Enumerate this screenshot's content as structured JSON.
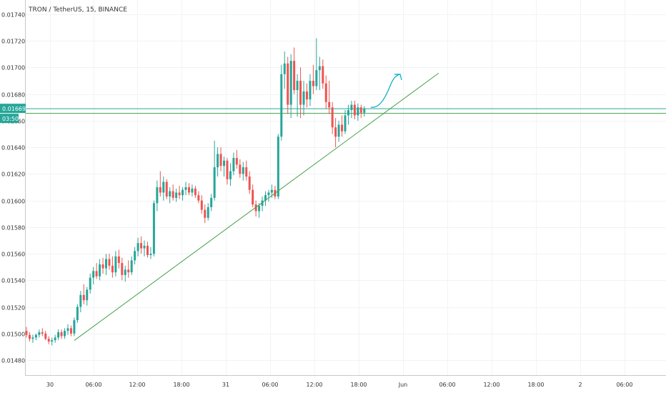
{
  "chart_data": {
    "type": "candlestick",
    "title": "TRON / TetherUS, 15, BINANCE",
    "y_ticks": [
      "0.01480",
      "0.01500",
      "0.01520",
      "0.01540",
      "0.01560",
      "0.01580",
      "0.01600",
      "0.01620",
      "0.01640",
      "0.01660",
      "0.01680",
      "0.01700",
      "0.01720",
      "0.01740"
    ],
    "x_ticks": [
      "30",
      "06:00",
      "12:00",
      "18:00",
      "31",
      "06:00",
      "12:00",
      "18:00",
      "Jun",
      "06:00",
      "12:00",
      "18:00",
      "2",
      "06:00"
    ],
    "ylim": [
      0.01473,
      0.01747
    ],
    "last_price": "0.01669",
    "countdown": "03:50",
    "grid": true,
    "colors": {
      "up": "#26a69a",
      "down": "#ef5350",
      "trendline": "#43a047",
      "hline": "#26a69a",
      "arrow": "#00acc1"
    },
    "candles_ohlc": [
      [
        0.01502,
        0.01505,
        0.01497,
        0.01499
      ],
      [
        0.01499,
        0.01501,
        0.01494,
        0.01496
      ],
      [
        0.01496,
        0.01499,
        0.01493,
        0.01497
      ],
      [
        0.01497,
        0.015,
        0.01495,
        0.01499
      ],
      [
        0.01499,
        0.01503,
        0.01497,
        0.01501
      ],
      [
        0.01501,
        0.01504,
        0.01498,
        0.015
      ],
      [
        0.015,
        0.01502,
        0.01495,
        0.01496
      ],
      [
        0.01496,
        0.01498,
        0.01492,
        0.01494
      ],
      [
        0.01494,
        0.01497,
        0.01491,
        0.01495
      ],
      [
        0.01495,
        0.01499,
        0.01493,
        0.01497
      ],
      [
        0.01497,
        0.01503,
        0.01495,
        0.01501
      ],
      [
        0.01501,
        0.01503,
        0.01496,
        0.01498
      ],
      [
        0.01498,
        0.01504,
        0.01496,
        0.01502
      ],
      [
        0.01502,
        0.01507,
        0.01499,
        0.01504
      ],
      [
        0.01504,
        0.01506,
        0.01498,
        0.015
      ],
      [
        0.015,
        0.01512,
        0.01498,
        0.0151
      ],
      [
        0.0151,
        0.01522,
        0.01508,
        0.0152
      ],
      [
        0.0152,
        0.01532,
        0.01516,
        0.01529
      ],
      [
        0.01529,
        0.01537,
        0.01522,
        0.01525
      ],
      [
        0.01525,
        0.01535,
        0.01521,
        0.01533
      ],
      [
        0.01533,
        0.01545,
        0.0153,
        0.01542
      ],
      [
        0.01542,
        0.0155,
        0.01537,
        0.01547
      ],
      [
        0.01547,
        0.01553,
        0.01541,
        0.01543
      ],
      [
        0.01543,
        0.01556,
        0.0154,
        0.01552
      ],
      [
        0.01552,
        0.01557,
        0.01545,
        0.01549
      ],
      [
        0.01549,
        0.0156,
        0.01544,
        0.01556
      ],
      [
        0.01556,
        0.0156,
        0.01548,
        0.01551
      ],
      [
        0.01551,
        0.01558,
        0.01542,
        0.01546
      ],
      [
        0.01546,
        0.01562,
        0.01543,
        0.01558
      ],
      [
        0.01558,
        0.01563,
        0.01549,
        0.01553
      ],
      [
        0.01553,
        0.01557,
        0.0154,
        0.01544
      ],
      [
        0.01544,
        0.01551,
        0.01539,
        0.01548
      ],
      [
        0.01548,
        0.01555,
        0.01542,
        0.01546
      ],
      [
        0.01546,
        0.01558,
        0.01544,
        0.01555
      ],
      [
        0.01555,
        0.01565,
        0.01552,
        0.01562
      ],
      [
        0.01562,
        0.01572,
        0.01558,
        0.01568
      ],
      [
        0.01568,
        0.01573,
        0.0156,
        0.01564
      ],
      [
        0.01564,
        0.0157,
        0.01558,
        0.01566
      ],
      [
        0.01566,
        0.01569,
        0.01557,
        0.01559
      ],
      [
        0.01559,
        0.01565,
        0.01556,
        0.0156
      ],
      [
        0.0156,
        0.016,
        0.01558,
        0.01598
      ],
      [
        0.01598,
        0.01615,
        0.01592,
        0.0161
      ],
      [
        0.0161,
        0.01622,
        0.01603,
        0.01606
      ],
      [
        0.01606,
        0.01618,
        0.016,
        0.01614
      ],
      [
        0.01614,
        0.01616,
        0.01601,
        0.01603
      ],
      [
        0.01603,
        0.0161,
        0.01598,
        0.01607
      ],
      [
        0.01607,
        0.01612,
        0.016,
        0.01602
      ],
      [
        0.01602,
        0.01609,
        0.01599,
        0.01606
      ],
      [
        0.01606,
        0.01611,
        0.01601,
        0.01604
      ],
      [
        0.01604,
        0.0161,
        0.016,
        0.01608
      ],
      [
        0.01608,
        0.01614,
        0.01604,
        0.0161
      ],
      [
        0.0161,
        0.01613,
        0.01604,
        0.01606
      ],
      [
        0.01606,
        0.01612,
        0.01603,
        0.01609
      ],
      [
        0.01609,
        0.01611,
        0.01602,
        0.01604
      ],
      [
        0.01604,
        0.01607,
        0.01598,
        0.016
      ],
      [
        0.016,
        0.01604,
        0.0159,
        0.01593
      ],
      [
        0.01593,
        0.01597,
        0.01583,
        0.01587
      ],
      [
        0.01587,
        0.01598,
        0.01585,
        0.01595
      ],
      [
        0.01595,
        0.01605,
        0.01592,
        0.01602
      ],
      [
        0.01602,
        0.01645,
        0.016,
        0.01625
      ],
      [
        0.01625,
        0.0164,
        0.01618,
        0.01635
      ],
      [
        0.01635,
        0.0164,
        0.01622,
        0.01626
      ],
      [
        0.01626,
        0.01633,
        0.01618,
        0.0163
      ],
      [
        0.0163,
        0.01632,
        0.01612,
        0.01616
      ],
      [
        0.01616,
        0.01628,
        0.01611,
        0.01622
      ],
      [
        0.01622,
        0.01636,
        0.01619,
        0.01632
      ],
      [
        0.01632,
        0.01638,
        0.01624,
        0.01627
      ],
      [
        0.01627,
        0.01631,
        0.01617,
        0.0162
      ],
      [
        0.0162,
        0.01629,
        0.01615,
        0.01625
      ],
      [
        0.01625,
        0.0163,
        0.01615,
        0.01618
      ],
      [
        0.01618,
        0.01622,
        0.01605,
        0.01608
      ],
      [
        0.01608,
        0.01612,
        0.01595,
        0.01597
      ],
      [
        0.01597,
        0.016,
        0.01588,
        0.01592
      ],
      [
        0.01592,
        0.01598,
        0.01587,
        0.01596
      ],
      [
        0.01596,
        0.01603,
        0.01592,
        0.016
      ],
      [
        0.016,
        0.01607,
        0.01596,
        0.01604
      ],
      [
        0.01604,
        0.01608,
        0.01599,
        0.01606
      ],
      [
        0.01606,
        0.01612,
        0.01602,
        0.01608
      ],
      [
        0.01608,
        0.01611,
        0.01601,
        0.01603
      ],
      [
        0.01603,
        0.0165,
        0.01601,
        0.01648
      ],
      [
        0.01648,
        0.01702,
        0.01645,
        0.01695
      ],
      [
        0.01695,
        0.01712,
        0.01684,
        0.01703
      ],
      [
        0.01703,
        0.01708,
        0.01665,
        0.01672
      ],
      [
        0.01672,
        0.0171,
        0.01662,
        0.01705
      ],
      [
        0.01705,
        0.01715,
        0.0168,
        0.01683
      ],
      [
        0.01683,
        0.01695,
        0.01663,
        0.0169
      ],
      [
        0.0169,
        0.017,
        0.01662,
        0.01672
      ],
      [
        0.01672,
        0.0169,
        0.01664,
        0.01682
      ],
      [
        0.01682,
        0.01688,
        0.0167,
        0.01676
      ],
      [
        0.01676,
        0.01695,
        0.01671,
        0.0169
      ],
      [
        0.0169,
        0.01702,
        0.0168,
        0.01686
      ],
      [
        0.01686,
        0.01722,
        0.01683,
        0.01698
      ],
      [
        0.01698,
        0.01708,
        0.01683,
        0.01701
      ],
      [
        0.01701,
        0.01706,
        0.01684,
        0.01688
      ],
      [
        0.01688,
        0.01694,
        0.01669,
        0.01674
      ],
      [
        0.01674,
        0.0169,
        0.01665,
        0.0167
      ],
      [
        0.0167,
        0.01674,
        0.0165,
        0.01655
      ],
      [
        0.01655,
        0.01662,
        0.0164,
        0.01648
      ],
      [
        0.01648,
        0.0166,
        0.01644,
        0.01657
      ],
      [
        0.01657,
        0.01664,
        0.01648,
        0.01652
      ],
      [
        0.01652,
        0.01668,
        0.0165,
        0.01664
      ],
      [
        0.01664,
        0.01672,
        0.01657,
        0.01668
      ],
      [
        0.01668,
        0.01675,
        0.01662,
        0.01672
      ],
      [
        0.01672,
        0.01675,
        0.01661,
        0.01664
      ],
      [
        0.01664,
        0.01673,
        0.0166,
        0.0167
      ],
      [
        0.0167,
        0.01672,
        0.01662,
        0.01666
      ],
      [
        0.01666,
        0.01671,
        0.01663,
        0.01669
      ]
    ]
  }
}
